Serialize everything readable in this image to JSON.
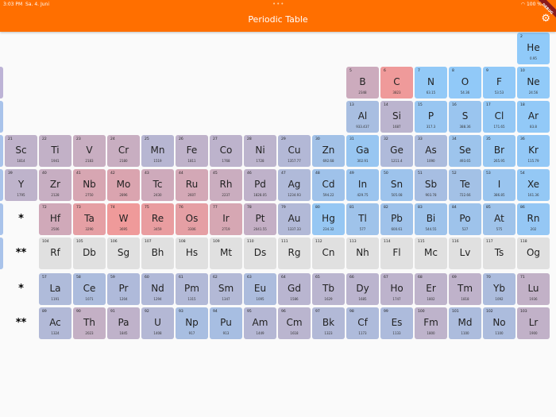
{
  "status_bar": {
    "time": "3:03 PM",
    "date": "Sa. 4. Juni",
    "battery": "100 %",
    "icons": [
      "wifi-icon",
      "battery-icon"
    ]
  },
  "app_bar": {
    "title": "Periodic Table",
    "action_icon": "gear-icon",
    "debug_banner": "DEBUG",
    "color": "#ff6f00"
  },
  "colors": {
    "cold": "#90caf9",
    "hot": "#ef9a9a",
    "unknown": "#e0e0e0"
  },
  "markers": {
    "lanthanides": "*",
    "actinides": "**"
  },
  "elements": [
    {
      "n": "2",
      "s": "He",
      "mp": "0.95",
      "g": 18,
      "p": 1
    },
    {
      "n": "5",
      "s": "B",
      "mp": "2348",
      "g": 13,
      "p": 2
    },
    {
      "n": "6",
      "s": "C",
      "mp": "3823",
      "g": 14,
      "p": 2
    },
    {
      "n": "7",
      "s": "N",
      "mp": "63.15",
      "g": 15,
      "p": 2
    },
    {
      "n": "8",
      "s": "O",
      "mp": "54.36",
      "g": 16,
      "p": 2
    },
    {
      "n": "9",
      "s": "F",
      "mp": "53.53",
      "g": 17,
      "p": 2
    },
    {
      "n": "10",
      "s": "Ne",
      "mp": "24.56",
      "g": 18,
      "p": 2
    },
    {
      "n": "13",
      "s": "Al",
      "mp": "933.437",
      "g": 13,
      "p": 3
    },
    {
      "n": "14",
      "s": "Si",
      "mp": "1687",
      "g": 14,
      "p": 3
    },
    {
      "n": "15",
      "s": "P",
      "mp": "317.3",
      "g": 15,
      "p": 3
    },
    {
      "n": "16",
      "s": "S",
      "mp": "388.36",
      "g": 16,
      "p": 3
    },
    {
      "n": "17",
      "s": "Cl",
      "mp": "171.65",
      "g": 17,
      "p": 3
    },
    {
      "n": "18",
      "s": "Ar",
      "mp": "83.8",
      "g": 18,
      "p": 3
    },
    {
      "n": "21",
      "s": "Sc",
      "mp": "1814",
      "g": 3,
      "p": 4
    },
    {
      "n": "22",
      "s": "Ti",
      "mp": "1941",
      "g": 4,
      "p": 4
    },
    {
      "n": "23",
      "s": "V",
      "mp": "2183",
      "g": 5,
      "p": 4
    },
    {
      "n": "24",
      "s": "Cr",
      "mp": "2180",
      "g": 6,
      "p": 4
    },
    {
      "n": "25",
      "s": "Mn",
      "mp": "1519",
      "g": 7,
      "p": 4
    },
    {
      "n": "26",
      "s": "Fe",
      "mp": "1811",
      "g": 8,
      "p": 4
    },
    {
      "n": "27",
      "s": "Co",
      "mp": "1768",
      "g": 9,
      "p": 4
    },
    {
      "n": "28",
      "s": "Ni",
      "mp": "1728",
      "g": 10,
      "p": 4
    },
    {
      "n": "29",
      "s": "Cu",
      "mp": "1357.77",
      "g": 11,
      "p": 4
    },
    {
      "n": "30",
      "s": "Zn",
      "mp": "692.68",
      "g": 12,
      "p": 4
    },
    {
      "n": "31",
      "s": "Ga",
      "mp": "302.91",
      "g": 13,
      "p": 4
    },
    {
      "n": "32",
      "s": "Ge",
      "mp": "1211.4",
      "g": 14,
      "p": 4
    },
    {
      "n": "33",
      "s": "As",
      "mp": "1090",
      "g": 15,
      "p": 4
    },
    {
      "n": "34",
      "s": "Se",
      "mp": "493.65",
      "g": 16,
      "p": 4
    },
    {
      "n": "35",
      "s": "Br",
      "mp": "265.95",
      "g": 17,
      "p": 4
    },
    {
      "n": "36",
      "s": "Kr",
      "mp": "115.79",
      "g": 18,
      "p": 4
    },
    {
      "n": "39",
      "s": "Y",
      "mp": "1795",
      "g": 3,
      "p": 5
    },
    {
      "n": "40",
      "s": "Zr",
      "mp": "2128",
      "g": 4,
      "p": 5
    },
    {
      "n": "41",
      "s": "Nb",
      "mp": "2750",
      "g": 5,
      "p": 5
    },
    {
      "n": "42",
      "s": "Mo",
      "mp": "2896",
      "g": 6,
      "p": 5
    },
    {
      "n": "43",
      "s": "Tc",
      "mp": "2430",
      "g": 7,
      "p": 5
    },
    {
      "n": "44",
      "s": "Ru",
      "mp": "2607",
      "g": 8,
      "p": 5
    },
    {
      "n": "45",
      "s": "Rh",
      "mp": "2237",
      "g": 9,
      "p": 5
    },
    {
      "n": "46",
      "s": "Pd",
      "mp": "1828.05",
      "g": 10,
      "p": 5
    },
    {
      "n": "47",
      "s": "Ag",
      "mp": "1234.93",
      "g": 11,
      "p": 5
    },
    {
      "n": "48",
      "s": "Cd",
      "mp": "594.22",
      "g": 12,
      "p": 5
    },
    {
      "n": "49",
      "s": "In",
      "mp": "429.75",
      "g": 13,
      "p": 5
    },
    {
      "n": "50",
      "s": "Sn",
      "mp": "505.08",
      "g": 14,
      "p": 5
    },
    {
      "n": "51",
      "s": "Sb",
      "mp": "903.78",
      "g": 15,
      "p": 5
    },
    {
      "n": "52",
      "s": "Te",
      "mp": "722.66",
      "g": 16,
      "p": 5
    },
    {
      "n": "53",
      "s": "I",
      "mp": "386.85",
      "g": 17,
      "p": 5
    },
    {
      "n": "54",
      "s": "Xe",
      "mp": "161.36",
      "g": 18,
      "p": 5
    },
    {
      "n": "72",
      "s": "Hf",
      "mp": "2506",
      "g": 4,
      "p": 6
    },
    {
      "n": "73",
      "s": "Ta",
      "mp": "3290",
      "g": 5,
      "p": 6
    },
    {
      "n": "74",
      "s": "W",
      "mp": "3695",
      "g": 6,
      "p": 6
    },
    {
      "n": "75",
      "s": "Re",
      "mp": "3459",
      "g": 7,
      "p": 6
    },
    {
      "n": "76",
      "s": "Os",
      "mp": "3306",
      "g": 8,
      "p": 6
    },
    {
      "n": "77",
      "s": "Ir",
      "mp": "2719",
      "g": 9,
      "p": 6
    },
    {
      "n": "78",
      "s": "Pt",
      "mp": "2041.55",
      "g": 10,
      "p": 6
    },
    {
      "n": "79",
      "s": "Au",
      "mp": "1337.33",
      "g": 11,
      "p": 6
    },
    {
      "n": "80",
      "s": "Hg",
      "mp": "234.32",
      "g": 12,
      "p": 6
    },
    {
      "n": "81",
      "s": "Tl",
      "mp": "577",
      "g": 13,
      "p": 6
    },
    {
      "n": "82",
      "s": "Pb",
      "mp": "600.61",
      "g": 14,
      "p": 6
    },
    {
      "n": "83",
      "s": "Bi",
      "mp": "544.55",
      "g": 15,
      "p": 6
    },
    {
      "n": "84",
      "s": "Po",
      "mp": "527",
      "g": 16,
      "p": 6
    },
    {
      "n": "85",
      "s": "At",
      "mp": "575",
      "g": 17,
      "p": 6
    },
    {
      "n": "86",
      "s": "Rn",
      "mp": "202",
      "g": 18,
      "p": 6
    },
    {
      "n": "104",
      "s": "Rf",
      "mp": null,
      "g": 4,
      "p": 7
    },
    {
      "n": "105",
      "s": "Db",
      "mp": null,
      "g": 5,
      "p": 7
    },
    {
      "n": "106",
      "s": "Sg",
      "mp": null,
      "g": 6,
      "p": 7
    },
    {
      "n": "107",
      "s": "Bh",
      "mp": null,
      "g": 7,
      "p": 7
    },
    {
      "n": "108",
      "s": "Hs",
      "mp": null,
      "g": 8,
      "p": 7
    },
    {
      "n": "109",
      "s": "Mt",
      "mp": null,
      "g": 9,
      "p": 7
    },
    {
      "n": "110",
      "s": "Ds",
      "mp": null,
      "g": 10,
      "p": 7
    },
    {
      "n": "111",
      "s": "Rg",
      "mp": null,
      "g": 11,
      "p": 7
    },
    {
      "n": "112",
      "s": "Cn",
      "mp": null,
      "g": 12,
      "p": 7
    },
    {
      "n": "113",
      "s": "Nh",
      "mp": null,
      "g": 13,
      "p": 7
    },
    {
      "n": "114",
      "s": "Fl",
      "mp": null,
      "g": 14,
      "p": 7
    },
    {
      "n": "115",
      "s": "Mc",
      "mp": null,
      "g": 15,
      "p": 7
    },
    {
      "n": "116",
      "s": "Lv",
      "mp": null,
      "g": 16,
      "p": 7
    },
    {
      "n": "117",
      "s": "Ts",
      "mp": null,
      "g": 17,
      "p": 7
    },
    {
      "n": "118",
      "s": "Og",
      "mp": null,
      "g": 18,
      "p": 7
    },
    {
      "n": "57",
      "s": "La",
      "mp": "1191",
      "g": 4,
      "p": 8
    },
    {
      "n": "58",
      "s": "Ce",
      "mp": "1071",
      "g": 5,
      "p": 8
    },
    {
      "n": "59",
      "s": "Pr",
      "mp": "1204",
      "g": 6,
      "p": 8
    },
    {
      "n": "60",
      "s": "Nd",
      "mp": "1294",
      "g": 7,
      "p": 8
    },
    {
      "n": "61",
      "s": "Pm",
      "mp": "1315",
      "g": 8,
      "p": 8
    },
    {
      "n": "62",
      "s": "Sm",
      "mp": "1347",
      "g": 9,
      "p": 8
    },
    {
      "n": "63",
      "s": "Eu",
      "mp": "1095",
      "g": 10,
      "p": 8
    },
    {
      "n": "64",
      "s": "Gd",
      "mp": "1586",
      "g": 11,
      "p": 8
    },
    {
      "n": "65",
      "s": "Tb",
      "mp": "1629",
      "g": 12,
      "p": 8
    },
    {
      "n": "66",
      "s": "Dy",
      "mp": "1685",
      "g": 13,
      "p": 8
    },
    {
      "n": "67",
      "s": "Ho",
      "mp": "1747",
      "g": 14,
      "p": 8
    },
    {
      "n": "68",
      "s": "Er",
      "mp": "1802",
      "g": 15,
      "p": 8
    },
    {
      "n": "69",
      "s": "Tm",
      "mp": "1818",
      "g": 16,
      "p": 8
    },
    {
      "n": "70",
      "s": "Yb",
      "mp": "1092",
      "g": 17,
      "p": 8
    },
    {
      "n": "71",
      "s": "Lu",
      "mp": "1936",
      "g": 18,
      "p": 8
    },
    {
      "n": "89",
      "s": "Ac",
      "mp": "1324",
      "g": 4,
      "p": 9
    },
    {
      "n": "90",
      "s": "Th",
      "mp": "2023",
      "g": 5,
      "p": 9
    },
    {
      "n": "91",
      "s": "Pa",
      "mp": "1845",
      "g": 6,
      "p": 9
    },
    {
      "n": "92",
      "s": "U",
      "mp": "1408",
      "g": 7,
      "p": 9
    },
    {
      "n": "93",
      "s": "Np",
      "mp": "917",
      "g": 8,
      "p": 9
    },
    {
      "n": "94",
      "s": "Pu",
      "mp": "913",
      "g": 9,
      "p": 9
    },
    {
      "n": "95",
      "s": "Am",
      "mp": "1449",
      "g": 10,
      "p": 9
    },
    {
      "n": "96",
      "s": "Cm",
      "mp": "1618",
      "g": 11,
      "p": 9
    },
    {
      "n": "97",
      "s": "Bk",
      "mp": "1323",
      "g": 12,
      "p": 9
    },
    {
      "n": "98",
      "s": "Cf",
      "mp": "1173",
      "g": 13,
      "p": 9
    },
    {
      "n": "99",
      "s": "Es",
      "mp": "1133",
      "g": 14,
      "p": 9
    },
    {
      "n": "100",
      "s": "Fm",
      "mp": "1800",
      "g": 15,
      "p": 9
    },
    {
      "n": "101",
      "s": "Md",
      "mp": "1100",
      "g": 16,
      "p": 9
    },
    {
      "n": "102",
      "s": "No",
      "mp": "1100",
      "g": 17,
      "p": 9
    },
    {
      "n": "103",
      "s": "Lr",
      "mp": "1900",
      "g": 18,
      "p": 9
    }
  ]
}
